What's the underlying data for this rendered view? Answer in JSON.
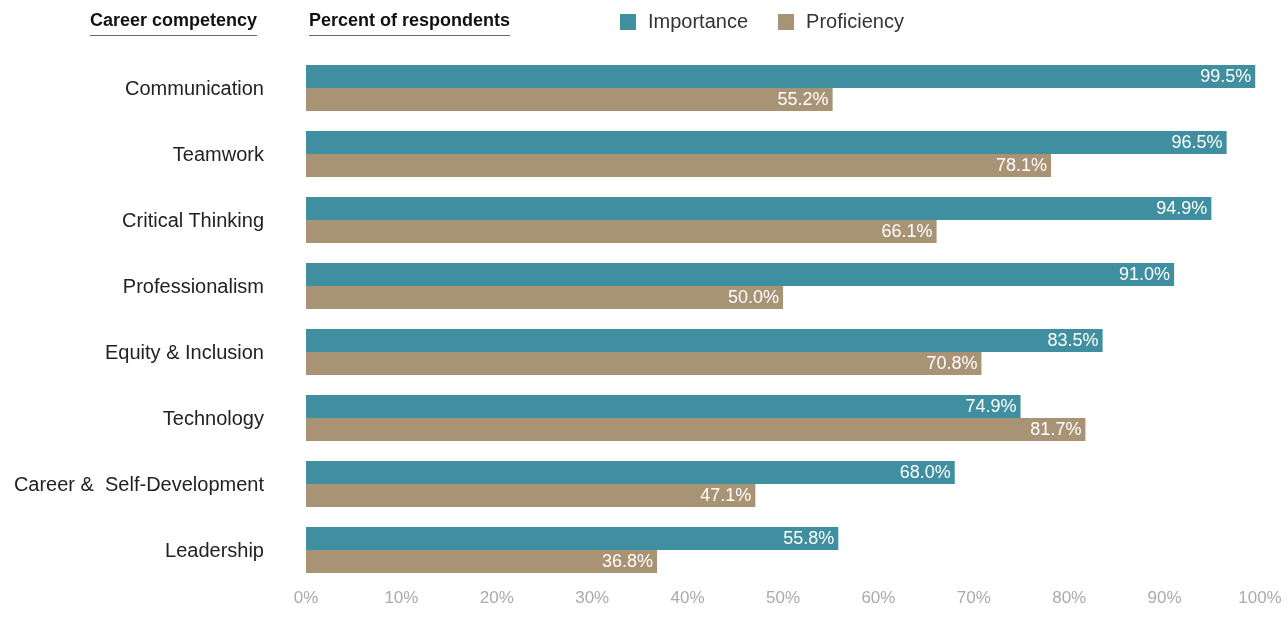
{
  "chart_data": {
    "type": "bar",
    "orientation": "horizontal",
    "ylabel": "Career competency",
    "xlabel": "Percent of respondents",
    "categories": [
      "Communication",
      "Teamwork",
      "Critical Thinking",
      "Professionalism",
      "Equity & Inclusion",
      "Technology",
      "Career &  Self-Development",
      "Leadership"
    ],
    "series": [
      {
        "name": "Importance",
        "color": "#3f8fa0",
        "values": [
          99.5,
          96.5,
          94.9,
          91.0,
          83.5,
          74.9,
          68.0,
          55.8
        ],
        "value_labels": [
          "99.5%",
          "96.5%",
          "94.9%",
          "91.0%",
          "83.5%",
          "74.9%",
          "68.0%",
          "55.8%"
        ]
      },
      {
        "name": "Proficiency",
        "color": "#a89375",
        "values": [
          55.2,
          78.1,
          66.1,
          50.0,
          70.8,
          81.7,
          47.1,
          36.8
        ],
        "value_labels": [
          "55.2%",
          "78.1%",
          "66.1%",
          "50.0%",
          "70.8%",
          "81.7%",
          "47.1%",
          "36.8%"
        ]
      }
    ],
    "xlim": [
      0,
      100
    ],
    "xticks": [
      {
        "value": 0,
        "label": "0%"
      },
      {
        "value": 10,
        "label": "10%"
      },
      {
        "value": 20,
        "label": "20%"
      },
      {
        "value": 30,
        "label": "30%"
      },
      {
        "value": 40,
        "label": "40%"
      },
      {
        "value": 50,
        "label": "50%"
      },
      {
        "value": 60,
        "label": "60%"
      },
      {
        "value": 70,
        "label": "70%"
      },
      {
        "value": 80,
        "label": "80%"
      },
      {
        "value": 90,
        "label": "90%"
      },
      {
        "value": 100,
        "label": "100%"
      }
    ],
    "grid": false,
    "legend": "top"
  }
}
